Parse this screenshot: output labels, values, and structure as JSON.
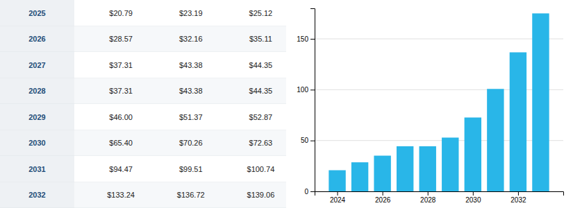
{
  "chart_data": {
    "type": "bar",
    "x": [
      2024,
      2025,
      2026,
      2027,
      2028,
      2029,
      2030,
      2031,
      2032,
      2033
    ],
    "values": [
      20.79,
      28.57,
      35.11,
      44.35,
      44.35,
      52.87,
      72.63,
      100.74,
      136.72,
      175.0
    ],
    "color": "#29b6e8",
    "xlim": [
      2023,
      2034
    ],
    "xticks": [
      2024,
      2026,
      2028,
      2030,
      2032
    ],
    "ylim": [
      0,
      180
    ],
    "yticks": [
      0,
      50,
      100,
      150
    ],
    "grid": true
  },
  "table": {
    "rows": [
      [
        "2025",
        "$20.79",
        "$23.19",
        "$25.12"
      ],
      [
        "2026",
        "$28.57",
        "$32.16",
        "$35.11"
      ],
      [
        "2027",
        "$37.31",
        "$43.38",
        "$44.35"
      ],
      [
        "2028",
        "$37.31",
        "$43.38",
        "$44.35"
      ],
      [
        "2029",
        "$46.00",
        "$51.37",
        "$52.87"
      ],
      [
        "2030",
        "$65.40",
        "$70.26",
        "$72.63"
      ],
      [
        "2031",
        "$94.47",
        "$99.51",
        "$100.74"
      ],
      [
        "2032",
        "$133.24",
        "$136.72",
        "$139.06"
      ]
    ]
  }
}
